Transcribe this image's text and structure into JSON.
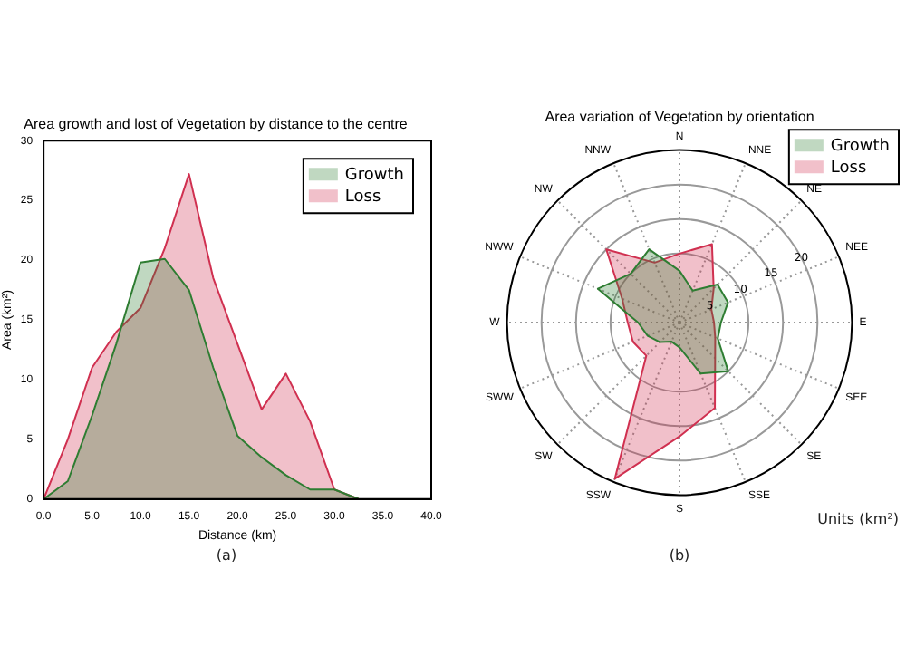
{
  "chart_data": [
    {
      "type": "area",
      "title": "Area growth and lost of Vegetation by distance to the centre",
      "xlabel": "Distance (km)",
      "ylabel": "Area (km²)",
      "x": [
        0,
        2.5,
        5,
        7.5,
        10,
        12.5,
        15,
        17.5,
        20,
        22.5,
        25,
        27.5,
        30,
        32.5
      ],
      "series": [
        {
          "name": "Growth",
          "color": "#2e7d32",
          "values": [
            0,
            1.5,
            7,
            13,
            19.8,
            20.1,
            17.5,
            11,
            5.3,
            3.5,
            2,
            0.8,
            0.8,
            0
          ]
        },
        {
          "name": "Loss",
          "color": "#d03050",
          "values": [
            0,
            5,
            11,
            14,
            16,
            21,
            27.2,
            18.5,
            13,
            7.5,
            10.5,
            6.5,
            0.8,
            0
          ]
        }
      ],
      "xlim": [
        0,
        40
      ],
      "xticks": [
        {
          "value": 0,
          "label": "0.0"
        },
        {
          "value": 5,
          "label": "5.0"
        },
        {
          "value": 10,
          "label": "10.0"
        },
        {
          "value": 15,
          "label": "15.0"
        },
        {
          "value": 20,
          "label": "20.0"
        },
        {
          "value": 25,
          "label": "25.0"
        },
        {
          "value": 30,
          "label": "30.0"
        },
        {
          "value": 35,
          "label": "35.0"
        },
        {
          "value": 40,
          "label": "40.0"
        }
      ],
      "ylim": [
        0,
        30
      ],
      "yticks": [
        0,
        5,
        10,
        15,
        20,
        25,
        30
      ],
      "legend": "top right",
      "annotations": [
        "(a)"
      ]
    },
    {
      "type": "radar",
      "title": "Area variation of Vegetation by orientation",
      "categories": [
        "N",
        "NNE",
        "NE",
        "NEE",
        "E",
        "SEE",
        "SE",
        "SSE",
        "S",
        "SSW",
        "SW",
        "SWW",
        "W",
        "NWW",
        "NW",
        "NNW"
      ],
      "series": [
        {
          "name": "Growth",
          "color": "#2e7d32",
          "values": [
            7.5,
            5,
            7.8,
            7.6,
            6,
            6,
            10,
            8,
            3.6,
            3,
            4,
            5,
            6,
            12.8,
            10,
            11.5
          ]
        },
        {
          "name": "Loss",
          "color": "#d03050",
          "values": [
            10,
            12.3,
            7,
            5,
            5,
            5.6,
            7.3,
            13.4,
            16.5,
            24.5,
            6.8,
            7.3,
            7.5,
            9,
            15,
            9.4
          ]
        }
      ],
      "ylim": [
        0,
        25
      ],
      "yticks": [
        5,
        10,
        15,
        20
      ],
      "grid": true,
      "legend": "top right",
      "annotations": [
        "Units (km²)",
        "(b)"
      ]
    }
  ]
}
